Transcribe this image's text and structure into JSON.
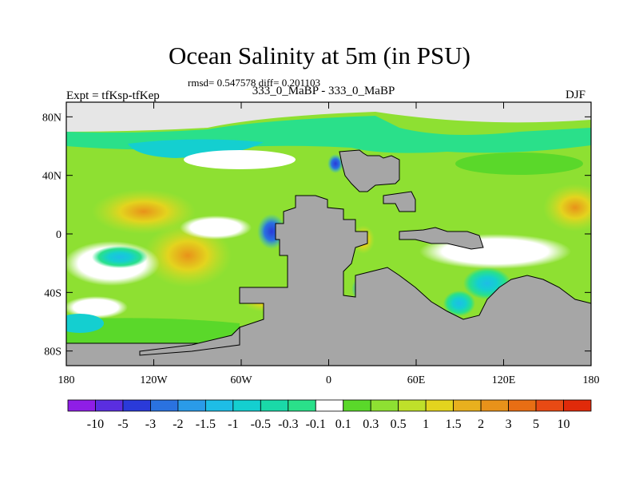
{
  "title": "Ocean Salinity at 5m (in PSU)",
  "subtitle": "rmsd= 0.547578 diff= 0.201103",
  "left_label": "Expt = tfKsp-tfKep",
  "center_label": "333_0_MaBP - 333_0_MaBP",
  "right_label": "DJF",
  "chart_data": {
    "type": "heatmap",
    "title": "Ocean Salinity at 5m (in PSU)",
    "subtitle": "rmsd= 0.547578 diff= 0.201103",
    "experiment": "Expt = tfKsp-tfKep",
    "comparison": "333_0_MaBP - 333_0_MaBP",
    "season": "DJF",
    "xlim": [
      -180,
      180
    ],
    "ylim": [
      -90,
      90
    ],
    "x_ticks": [
      {
        "value": -180,
        "label": "180"
      },
      {
        "value": -120,
        "label": "120W"
      },
      {
        "value": -60,
        "label": "60W"
      },
      {
        "value": 0,
        "label": "0"
      },
      {
        "value": 60,
        "label": "60E"
      },
      {
        "value": 120,
        "label": "120E"
      },
      {
        "value": 180,
        "label": "180"
      }
    ],
    "y_ticks": [
      {
        "value": 80,
        "label": "80N"
      },
      {
        "value": 40,
        "label": "40N"
      },
      {
        "value": 0,
        "label": "0"
      },
      {
        "value": -40,
        "label": "40S"
      },
      {
        "value": -80,
        "label": "80S"
      }
    ],
    "colorbar": {
      "labels": [
        "-10",
        "-5",
        "-3",
        "-2",
        "-1.5",
        "-1",
        "-0.5",
        "-0.3",
        "-0.1",
        "0.1",
        "0.3",
        "0.5",
        "1",
        "1.5",
        "2",
        "3",
        "5",
        "10"
      ],
      "colors": [
        "#8f1ee6",
        "#5a2ee0",
        "#2a3ad9",
        "#2a72e0",
        "#2a9be8",
        "#1ebde6",
        "#14cfd0",
        "#1ad9a8",
        "#2ae08a",
        "#ffffff",
        "#5ad82a",
        "#8ee032",
        "#bfe02a",
        "#e3d41e",
        "#e8b01e",
        "#e8921a",
        "#e86e14",
        "#e84a14",
        "#e02a0a"
      ]
    },
    "land_color": "#a6a6a6"
  }
}
